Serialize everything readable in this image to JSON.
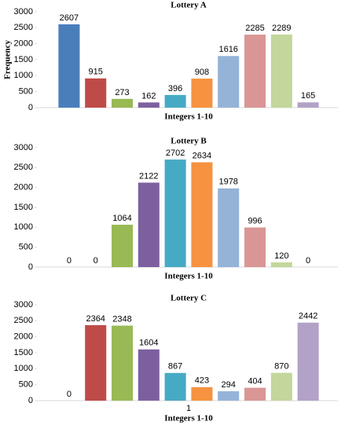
{
  "chart_data": [
    {
      "type": "bar",
      "title": "Lottery A",
      "y_label": "Frequency",
      "x_label": "Integers 1-10",
      "values": [
        2607,
        915,
        273,
        162,
        396,
        908,
        1616,
        2285,
        2289,
        165
      ],
      "colors": [
        "#4a7ebb",
        "#be4b48",
        "#98b954",
        "#7d5fa0",
        "#46aac5",
        "#f69240",
        "#95b3d7",
        "#d99694",
        "#c3d69b",
        "#b3a2c7"
      ],
      "ylim": [
        0,
        3000
      ],
      "yticks": [
        0,
        500,
        1000,
        1500,
        2000,
        2500,
        3000
      ]
    },
    {
      "type": "bar",
      "title": "Lottery B",
      "x_label": "Integers 1-10",
      "values": [
        0,
        0,
        1064,
        2122,
        2702,
        2634,
        1978,
        996,
        120,
        0
      ],
      "colors": [
        "#4a7ebb",
        "#be4b48",
        "#98b954",
        "#7d5fa0",
        "#46aac5",
        "#f69240",
        "#95b3d7",
        "#d99694",
        "#c3d69b",
        "#b3a2c7"
      ],
      "ylim": [
        0,
        3000
      ],
      "yticks": [
        0,
        500,
        1000,
        1500,
        2000,
        2500,
        3000
      ]
    },
    {
      "type": "bar",
      "title": "Lottery C",
      "x_label": "Integers 1-10",
      "x_note": "1",
      "values": [
        0,
        2364,
        2348,
        1604,
        867,
        423,
        294,
        404,
        870,
        2442
      ],
      "colors": [
        "#4a7ebb",
        "#be4b48",
        "#98b954",
        "#7d5fa0",
        "#46aac5",
        "#f69240",
        "#95b3d7",
        "#d99694",
        "#c3d69b",
        "#b3a2c7"
      ],
      "ylim": [
        0,
        3000
      ],
      "yticks": [
        0,
        500,
        1000,
        1500,
        2000,
        2500,
        3000
      ]
    }
  ]
}
